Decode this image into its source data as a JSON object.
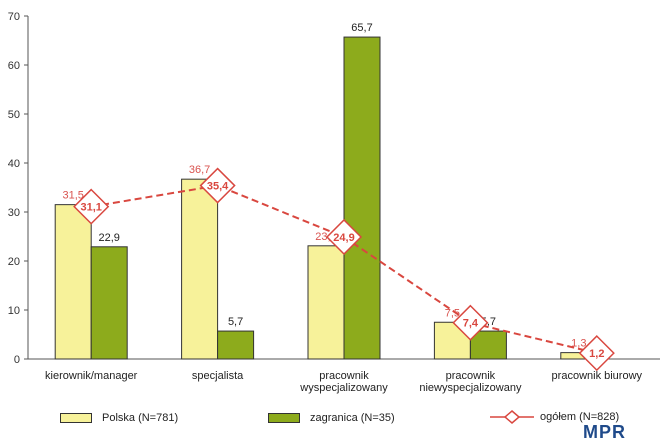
{
  "chart_data": {
    "type": "bar",
    "categories": [
      "kierownik/manager",
      "specjalista",
      "pracownik wyspecjalizowany",
      "pracownik niewyspecjalizowany",
      "pracownik biurowy"
    ],
    "category_lines": [
      [
        "kierownik/manager"
      ],
      [
        "specjalista"
      ],
      [
        "pracownik",
        "wyspecjalizowany"
      ],
      [
        "pracownik",
        "niewyspecjalizowany"
      ],
      [
        "pracownik biurowy"
      ]
    ],
    "series": [
      {
        "name": "Polska (N=781)",
        "kind": "bar",
        "color": "#f7f29a",
        "values": [
          31.5,
          36.7,
          23.1,
          7.5,
          1.3
        ],
        "labels": [
          "31,5",
          "36,7",
          "23,1",
          "7,5",
          "1,3"
        ],
        "label_color": "#d9534f"
      },
      {
        "name": "zagranica (N=35)",
        "kind": "bar",
        "color": "#8dab1c",
        "values": [
          22.9,
          5.7,
          65.7,
          5.7,
          null
        ],
        "labels": [
          "22,9",
          "5,7",
          "65,7",
          "5,7",
          ""
        ],
        "label_color": "#222222"
      },
      {
        "name": "ogółem (N=828)",
        "kind": "line",
        "color": "#d9473f",
        "values": [
          31.1,
          35.4,
          24.9,
          7.4,
          1.2
        ],
        "labels": [
          "31,1",
          "35,4",
          "24,9",
          "7,4",
          "1,2"
        ]
      }
    ],
    "yticks": [
      0,
      10,
      20,
      30,
      40,
      50,
      60,
      70
    ],
    "ylim": [
      0,
      70
    ],
    "grid": false,
    "legend_position": "bottom"
  },
  "logo": {
    "text": "MPR"
  }
}
